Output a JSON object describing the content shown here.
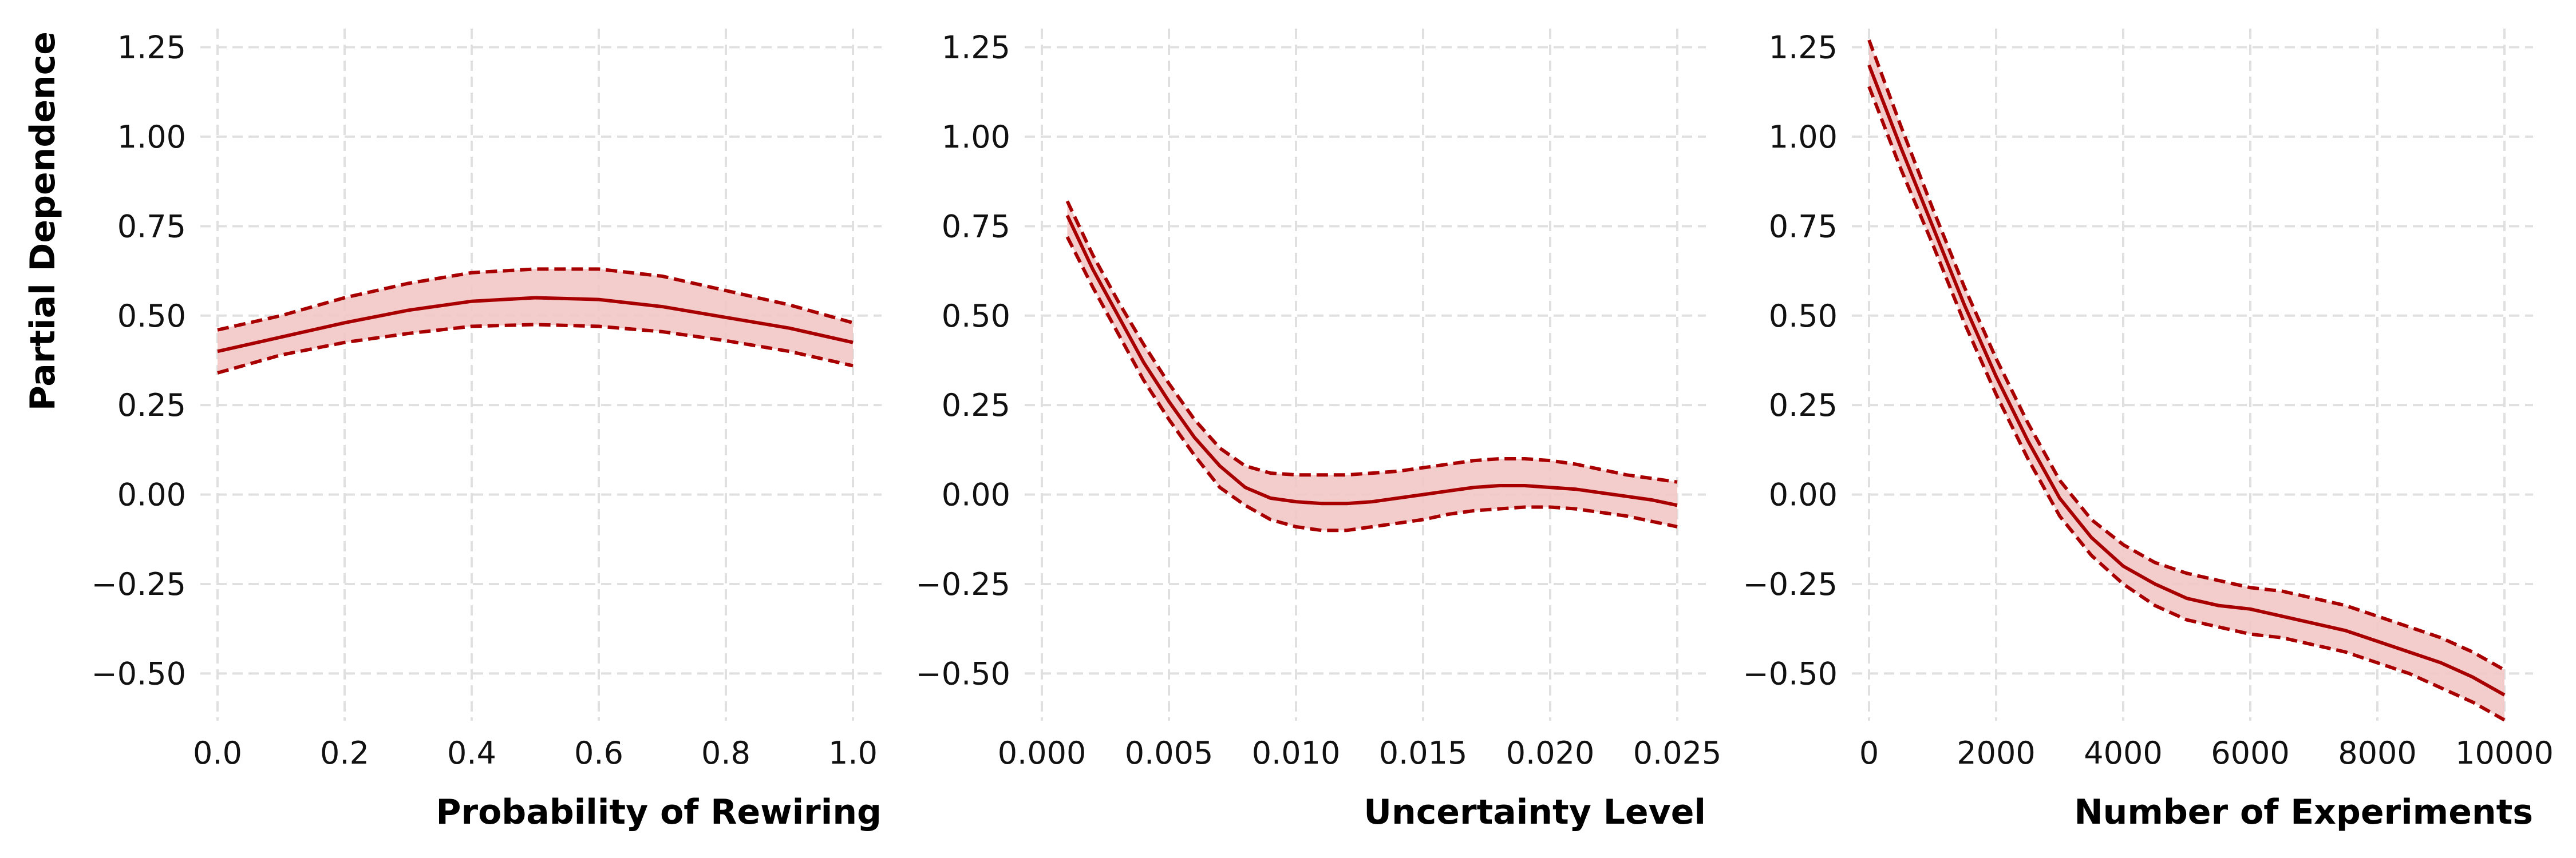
{
  "colors": {
    "line": "#a80000",
    "band_fill": "#f2c6c6",
    "grid": "#e0e0e0",
    "text": "#111111"
  },
  "chart_data": [
    {
      "type": "line",
      "title": "",
      "xlabel": "Probability of Rewiring",
      "ylabel": "Partial Dependence",
      "xlim": [
        0.0,
        1.0
      ],
      "ylim": [
        -0.6,
        1.27
      ],
      "grid": true,
      "x_ticks": [
        "0.0",
        "0.2",
        "0.4",
        "0.6",
        "0.8",
        "1.0"
      ],
      "x_tick_values": [
        0.0,
        0.2,
        0.4,
        0.6,
        0.8,
        1.0
      ],
      "y_ticks": [
        "1.25",
        "1.00",
        "0.75",
        "0.50",
        "0.25",
        "0.00",
        "−0.25",
        "−0.50"
      ],
      "y_tick_values": [
        1.25,
        1.0,
        0.75,
        0.5,
        0.25,
        0.0,
        -0.25,
        -0.5
      ],
      "x": [
        0.0,
        0.1,
        0.2,
        0.3,
        0.4,
        0.5,
        0.6,
        0.7,
        0.8,
        0.9,
        1.0
      ],
      "series": [
        {
          "role": "mean",
          "values": [
            0.4,
            0.44,
            0.48,
            0.515,
            0.54,
            0.55,
            0.545,
            0.525,
            0.495,
            0.465,
            0.425
          ]
        },
        {
          "role": "upper",
          "values": [
            0.46,
            0.5,
            0.55,
            0.59,
            0.62,
            0.63,
            0.63,
            0.61,
            0.57,
            0.53,
            0.48
          ]
        },
        {
          "role": "lower",
          "values": [
            0.34,
            0.39,
            0.425,
            0.45,
            0.47,
            0.475,
            0.47,
            0.455,
            0.43,
            0.4,
            0.36
          ]
        }
      ]
    },
    {
      "type": "line",
      "title": "",
      "xlabel": "Uncertainty Level",
      "ylabel": "",
      "xlim": [
        0.0,
        0.025
      ],
      "ylim": [
        -0.6,
        1.27
      ],
      "grid": true,
      "x_ticks": [
        "0.000",
        "0.005",
        "0.010",
        "0.015",
        "0.020",
        "0.025"
      ],
      "x_tick_values": [
        0.0,
        0.005,
        0.01,
        0.015,
        0.02,
        0.025
      ],
      "y_ticks": [
        "1.25",
        "1.00",
        "0.75",
        "0.50",
        "0.25",
        "0.00",
        "−0.25",
        "−0.50"
      ],
      "y_tick_values": [
        1.25,
        1.0,
        0.75,
        0.5,
        0.25,
        0.0,
        -0.25,
        -0.5
      ],
      "x": [
        0.001,
        0.002,
        0.003,
        0.004,
        0.005,
        0.006,
        0.007,
        0.008,
        0.009,
        0.01,
        0.011,
        0.012,
        0.013,
        0.014,
        0.015,
        0.016,
        0.017,
        0.018,
        0.019,
        0.02,
        0.021,
        0.022,
        0.023,
        0.024,
        0.025
      ],
      "series": [
        {
          "role": "mean",
          "values": [
            0.78,
            0.63,
            0.5,
            0.37,
            0.26,
            0.16,
            0.08,
            0.02,
            -0.01,
            -0.02,
            -0.025,
            -0.025,
            -0.02,
            -0.01,
            0.0,
            0.01,
            0.02,
            0.025,
            0.025,
            0.02,
            0.015,
            0.005,
            -0.005,
            -0.015,
            -0.03
          ]
        },
        {
          "role": "upper",
          "values": [
            0.82,
            0.67,
            0.54,
            0.42,
            0.31,
            0.21,
            0.13,
            0.08,
            0.06,
            0.055,
            0.055,
            0.055,
            0.06,
            0.065,
            0.075,
            0.085,
            0.095,
            0.1,
            0.1,
            0.095,
            0.085,
            0.07,
            0.055,
            0.045,
            0.035
          ]
        },
        {
          "role": "lower",
          "values": [
            0.72,
            0.58,
            0.45,
            0.32,
            0.21,
            0.11,
            0.02,
            -0.03,
            -0.07,
            -0.09,
            -0.1,
            -0.1,
            -0.09,
            -0.08,
            -0.07,
            -0.055,
            -0.045,
            -0.04,
            -0.035,
            -0.035,
            -0.04,
            -0.05,
            -0.06,
            -0.075,
            -0.09
          ]
        }
      ]
    },
    {
      "type": "line",
      "title": "",
      "xlabel": "Number of Experiments",
      "ylabel": "",
      "xlim": [
        0,
        10000
      ],
      "ylim": [
        -0.6,
        1.27
      ],
      "grid": true,
      "x_ticks": [
        "0",
        "2000",
        "4000",
        "6000",
        "8000",
        "10000"
      ],
      "x_tick_values": [
        0,
        2000,
        4000,
        6000,
        8000,
        10000
      ],
      "y_ticks": [
        "1.25",
        "1.00",
        "0.75",
        "0.50",
        "0.25",
        "0.00",
        "−0.25",
        "−0.50"
      ],
      "y_tick_values": [
        1.25,
        1.0,
        0.75,
        0.5,
        0.25,
        0.0,
        -0.25,
        -0.5
      ],
      "x": [
        0,
        500,
        1000,
        1500,
        2000,
        2500,
        3000,
        3500,
        4000,
        4500,
        5000,
        5500,
        6000,
        6500,
        7000,
        7500,
        8000,
        8500,
        9000,
        9500,
        10000
      ],
      "series": [
        {
          "role": "mean",
          "values": [
            1.2,
            0.97,
            0.75,
            0.53,
            0.33,
            0.15,
            -0.01,
            -0.12,
            -0.2,
            -0.25,
            -0.29,
            -0.31,
            -0.32,
            -0.34,
            -0.36,
            -0.38,
            -0.41,
            -0.44,
            -0.47,
            -0.51,
            -0.56
          ]
        },
        {
          "role": "upper",
          "values": [
            1.27,
            1.03,
            0.8,
            0.58,
            0.38,
            0.2,
            0.04,
            -0.07,
            -0.14,
            -0.19,
            -0.22,
            -0.24,
            -0.26,
            -0.27,
            -0.29,
            -0.31,
            -0.34,
            -0.37,
            -0.4,
            -0.44,
            -0.49
          ]
        },
        {
          "role": "lower",
          "values": [
            1.14,
            0.91,
            0.7,
            0.48,
            0.28,
            0.1,
            -0.06,
            -0.17,
            -0.25,
            -0.31,
            -0.35,
            -0.37,
            -0.39,
            -0.4,
            -0.42,
            -0.44,
            -0.47,
            -0.5,
            -0.54,
            -0.58,
            -0.63
          ]
        }
      ]
    }
  ]
}
